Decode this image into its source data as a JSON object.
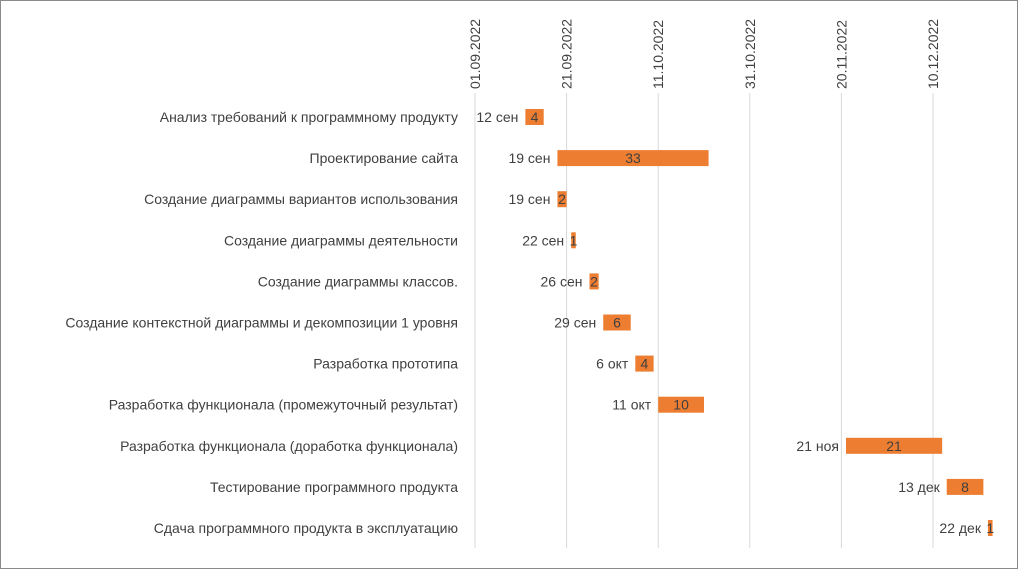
{
  "chart_data": {
    "type": "bar",
    "subtype": "gantt",
    "orientation": "horizontal",
    "title": "",
    "xlabel": "",
    "ylabel": "",
    "x_axis_position": "top",
    "x_tick_labels": [
      "01.09.2022",
      "21.09.2022",
      "11.10.2022",
      "31.10.2022",
      "20.11.2022",
      "10.12.2022"
    ],
    "x_tick_values": [
      "2022-09-01",
      "2022-09-21",
      "2022-10-11",
      "2022-10-31",
      "2022-11-20",
      "2022-12-10"
    ],
    "xlim": [
      "2022-09-01",
      "2022-12-27"
    ],
    "grid": "vertical",
    "legend": "none",
    "bar_color": "#ED7D31",
    "grid_color": "#D9D9D9",
    "text_color": "#404040",
    "tasks": [
      {
        "name": "Анализ требований к программному продукту",
        "start": "2022-09-12",
        "start_label": "12 сен",
        "duration": 4
      },
      {
        "name": "Проектирование сайта",
        "start": "2022-09-19",
        "start_label": "19 сен",
        "duration": 33
      },
      {
        "name": "Создание диаграммы вариантов использования",
        "start": "2022-09-19",
        "start_label": "19 сен",
        "duration": 2
      },
      {
        "name": "Создание диаграммы деятельности",
        "start": "2022-09-22",
        "start_label": "22 сен",
        "duration": 1
      },
      {
        "name": "Создание диаграммы классов.",
        "start": "2022-09-26",
        "start_label": "26 сен",
        "duration": 2
      },
      {
        "name": "Создание контекстной диаграммы и декомпозиции 1 уровня",
        "start": "2022-09-29",
        "start_label": "29 сен",
        "duration": 6
      },
      {
        "name": "Разработка прототипа",
        "start": "2022-10-06",
        "start_label": "6 окт",
        "duration": 4
      },
      {
        "name": "Разработка функционала (промежуточный результат)",
        "start": "2022-10-11",
        "start_label": "11 окт",
        "duration": 10
      },
      {
        "name": "Разработка функционала (доработка функционала)",
        "start": "2022-11-21",
        "start_label": "21 ноя",
        "duration": 21
      },
      {
        "name": "Тестирование программного продукта",
        "start": "2022-12-13",
        "start_label": "13 дек",
        "duration": 8
      },
      {
        "name": "Сдача программного продукта в эксплуатацию",
        "start": "2022-12-22",
        "start_label": "22 дек",
        "duration": 1
      }
    ]
  }
}
